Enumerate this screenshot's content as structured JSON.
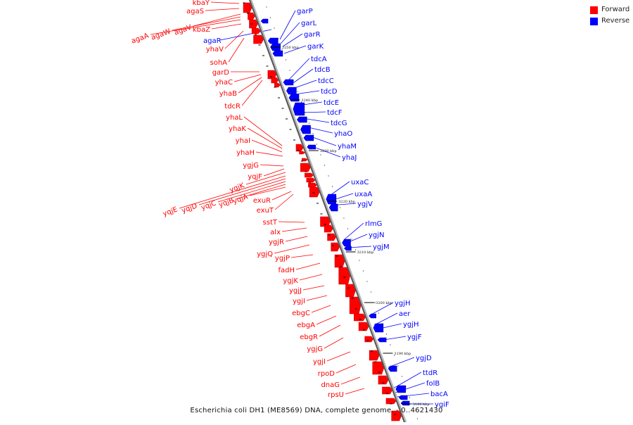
{
  "legend": {
    "forward_label": "Forward",
    "reverse_label": "Reverse",
    "forward_color": "#ff0000",
    "reverse_color": "#0000ff"
  },
  "caption": "Escherichia coli DH1 (ME8569) DNA, complete genome. - 0..4621430",
  "ticks": [
    "3250 kbp",
    "3240 kbp",
    "3230 kbp",
    "3220 kbp",
    "3210 kbp",
    "3200 kbp",
    "3190 kbp",
    "3180 kbp"
  ],
  "forward_genes": [
    "kbaY",
    "agaS",
    "agaV",
    "agaW",
    "agaA",
    "kbaZ",
    "yhaV",
    "sohA",
    "garD",
    "yhaC",
    "yhaB",
    "tdcR",
    "yhaL",
    "yhaK",
    "yhaI",
    "yhaH",
    "ygjG",
    "yqjF",
    "yqjK",
    "yqjE",
    "yqjD",
    "yqjC",
    "yqjB",
    "yqjA",
    "exuR",
    "exuT",
    "sstT",
    "alx",
    "ygjR",
    "ygjQ",
    "ygjP",
    "fadH",
    "ygjK",
    "ygjJ",
    "ygjI",
    "ebgC",
    "ebgA",
    "ebgR",
    "ygjG",
    "ygjI",
    "rpoD",
    "dnaG",
    "rpsU"
  ],
  "reverse_genes": [
    "garP",
    "garL",
    "garR",
    "agaR",
    "garK",
    "tdcA",
    "tdcB",
    "tdcC",
    "tdcD",
    "tdcE",
    "tdcF",
    "tdcG",
    "yhaO",
    "yhaM",
    "yhaJ",
    "uxaC",
    "uxaA",
    "ygjV",
    "rlmG",
    "ygjN",
    "ygjM",
    "ygjH",
    "aer",
    "ygjH",
    "ygjF",
    "ygjD",
    "ttdR",
    "folB",
    "bacA",
    "ygiF"
  ]
}
